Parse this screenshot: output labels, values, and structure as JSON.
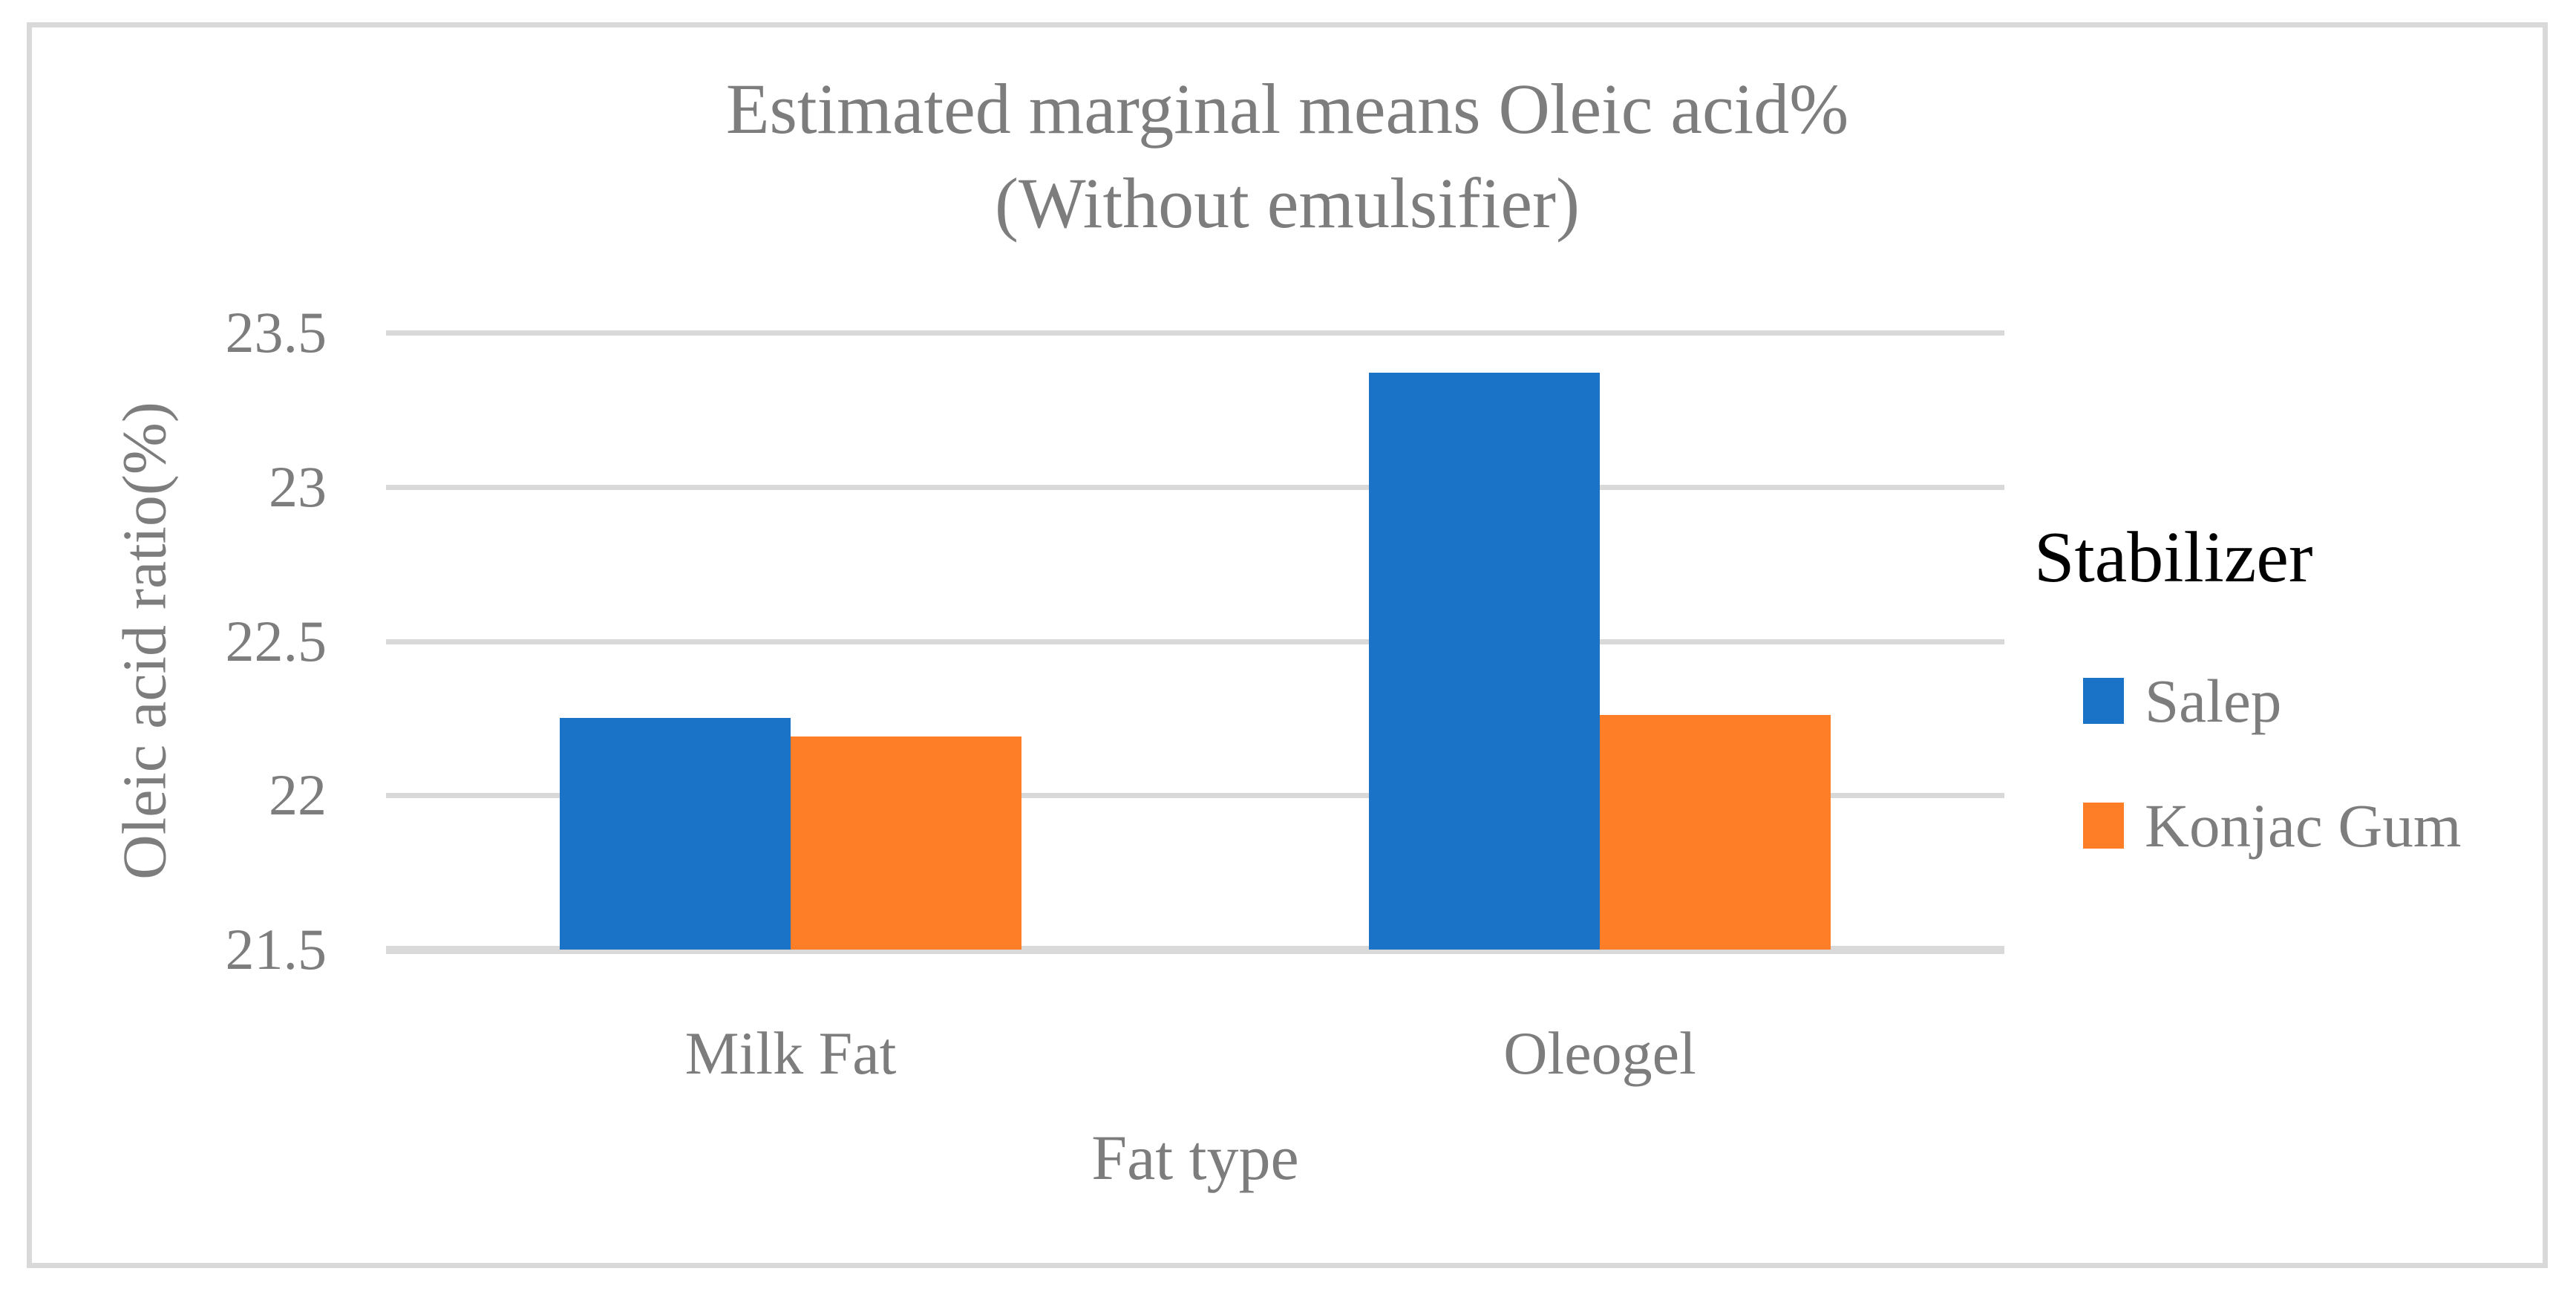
{
  "figure": {
    "background": "#FFFFFF",
    "frame_border_color": "#D9D9D9"
  },
  "chart_data": {
    "type": "bar",
    "title": "Estimated marginal means Oleic acid% (Without emulsifier)",
    "title_line1": "Estimated marginal means Oleic acid%",
    "title_line2": "(Without emulsifier)",
    "xlabel": "Fat type",
    "ylabel": "Oleic acid ratio(%)",
    "categories": [
      "Milk Fat",
      "Oleogel"
    ],
    "series": [
      {
        "name": "Salep",
        "color": "#1B73C7",
        "values": [
          22.25,
          23.37
        ]
      },
      {
        "name": "Konjac Gum",
        "color": "#FD7E27",
        "values": [
          22.19,
          22.26
        ]
      }
    ],
    "ylim": [
      21.5,
      23.5
    ],
    "yticks": [
      {
        "value": 21.5,
        "label": "21.5"
      },
      {
        "value": 22,
        "label": "22"
      },
      {
        "value": 22.5,
        "label": "22.5"
      },
      {
        "value": 23,
        "label": "23"
      },
      {
        "value": 23.5,
        "label": "23.5"
      }
    ],
    "grid": true,
    "gridline_color": "#D9D9D9",
    "text_color": "#7D7D7D",
    "legend_position": "right"
  },
  "legend": {
    "title": "Stabilizer",
    "items": [
      {
        "label": "Salep",
        "color": "#1B73C7"
      },
      {
        "label": "Konjac Gum",
        "color": "#FD7E27"
      }
    ]
  }
}
